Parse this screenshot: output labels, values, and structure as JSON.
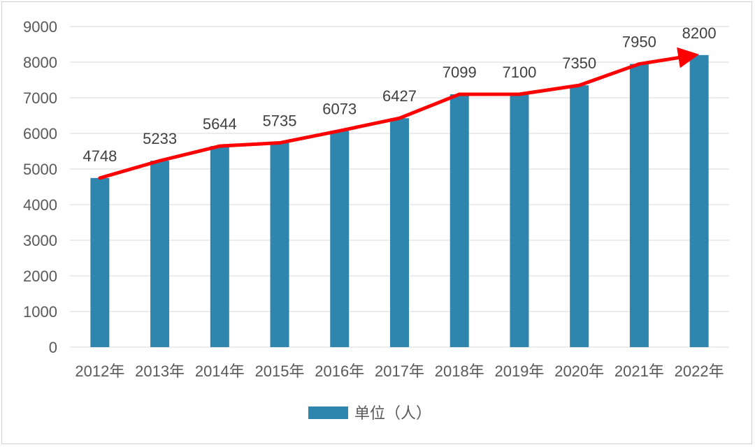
{
  "chart_data": {
    "type": "bar",
    "categories": [
      "2012年",
      "2013年",
      "2014年",
      "2015年",
      "2016年",
      "2017年",
      "2018年",
      "2019年",
      "2020年",
      "2021年",
      "2022年"
    ],
    "series": [
      {
        "name": "单位（人）",
        "values": [
          4748,
          5233,
          5644,
          5735,
          6073,
          6427,
          7099,
          7100,
          7350,
          7950,
          8200
        ]
      }
    ],
    "ylim": [
      0,
      9000
    ],
    "yticks": [
      "0",
      "1000",
      "2000",
      "3000",
      "4000",
      "5000",
      "6000",
      "7000",
      "8000",
      "9000"
    ],
    "grid": true,
    "legend": "bottom",
    "trend_line": true,
    "colors": {
      "bar": "#2e86ae",
      "trend": "#ff0000",
      "grid": "#d9d9d9"
    }
  }
}
